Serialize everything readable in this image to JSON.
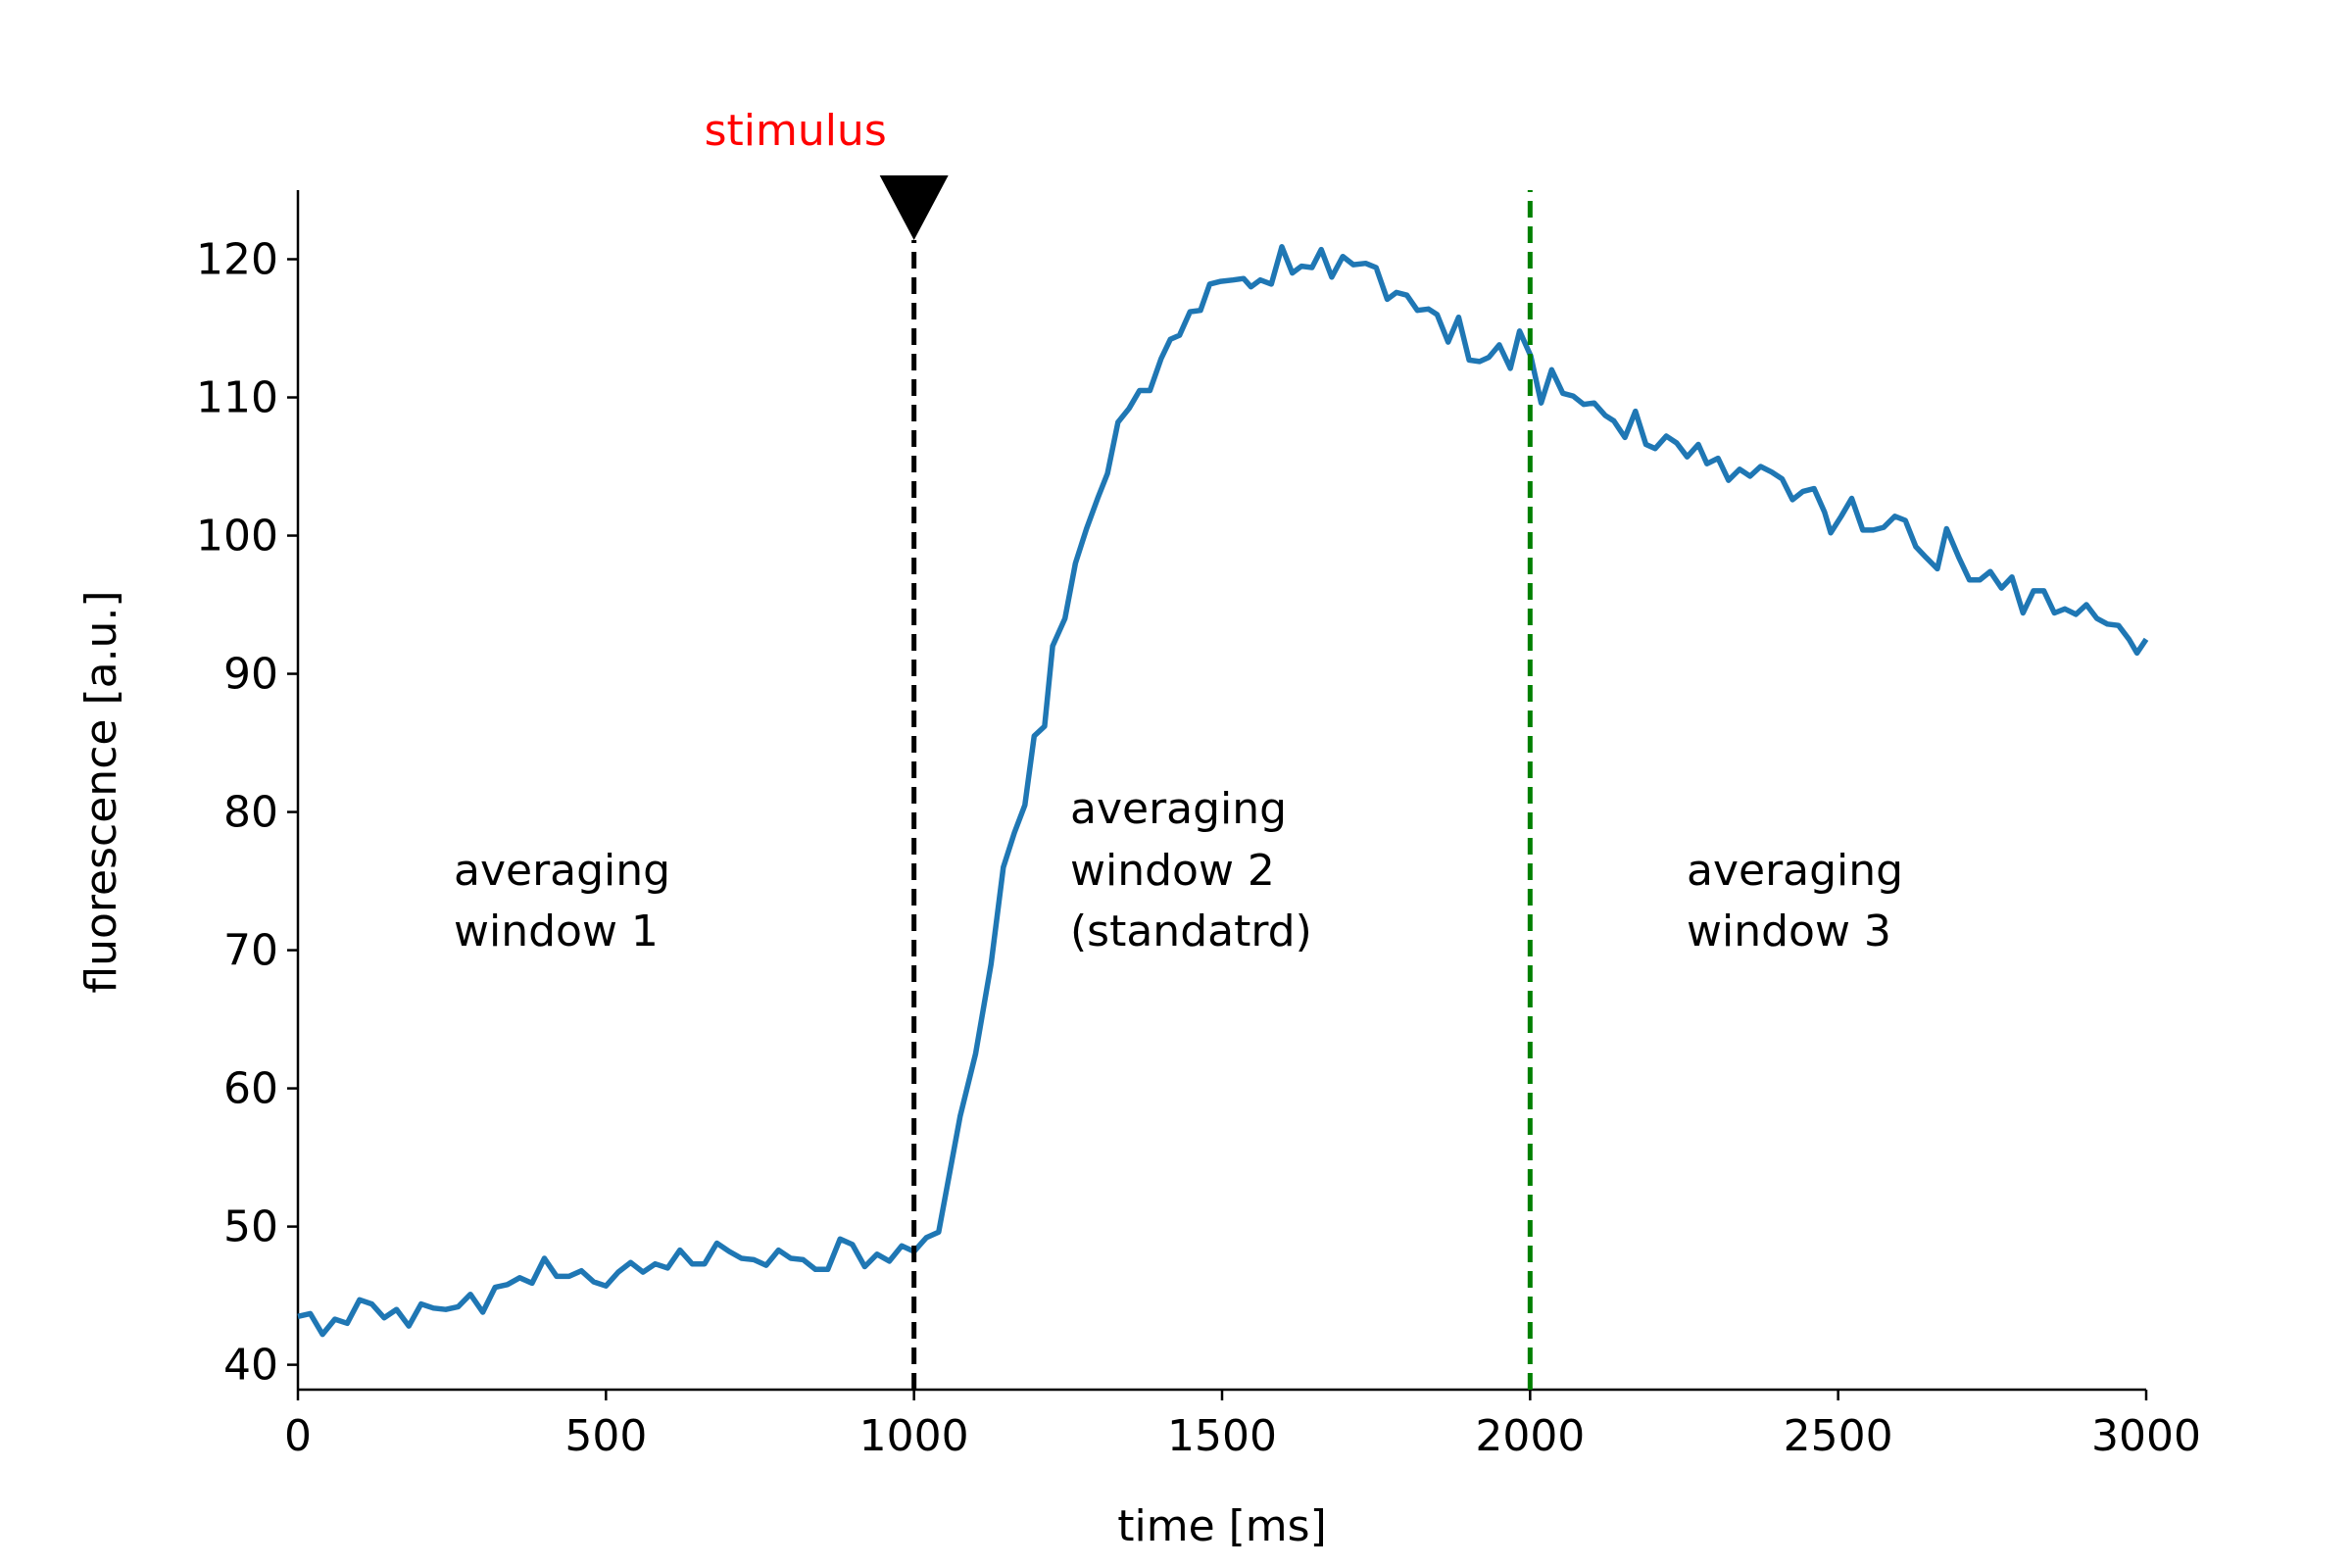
{
  "chart_data": {
    "type": "line",
    "xlabel": "time [ms]",
    "ylabel": "fluorescence [a.u.]",
    "x": [
      0,
      20,
      40,
      60,
      80,
      100,
      120,
      140,
      160,
      180,
      200,
      220,
      240,
      260,
      280,
      300,
      320,
      340,
      360,
      380,
      400,
      420,
      440,
      460,
      480,
      500,
      520,
      540,
      560,
      580,
      600,
      620,
      640,
      660,
      680,
      700,
      720,
      740,
      760,
      780,
      800,
      820,
      840,
      860,
      880,
      900,
      920,
      940,
      960,
      980,
      1000,
      1020,
      1040,
      1050,
      1075,
      1100,
      1125,
      1145,
      1163,
      1180,
      1195,
      1212,
      1225,
      1245,
      1262,
      1280,
      1299,
      1314,
      1331,
      1349,
      1366,
      1383,
      1401,
      1416,
      1431,
      1448,
      1465,
      1480,
      1498,
      1518,
      1535,
      1547,
      1562,
      1580,
      1597,
      1614,
      1629,
      1646,
      1661,
      1678,
      1696,
      1713,
      1733,
      1750,
      1768,
      1783,
      1800,
      1817,
      1835,
      1849,
      1867,
      1884,
      1901,
      1918,
      1933,
      1950,
      1968,
      1983,
      2001,
      2018,
      2035,
      2053,
      2070,
      2087,
      2104,
      2122,
      2136,
      2154,
      2171,
      2188,
      2203,
      2221,
      2238,
      2255,
      2273,
      2287,
      2305,
      2322,
      2340,
      2357,
      2374,
      2392,
      2409,
      2426,
      2443,
      2461,
      2478,
      2488,
      2505,
      2522,
      2540,
      2557,
      2574,
      2592,
      2609,
      2626,
      2643,
      2661,
      2676,
      2696,
      2713,
      2730,
      2747,
      2765,
      2782,
      2800,
      2817,
      2834,
      2851,
      2868,
      2886,
      2903,
      2920,
      2937,
      2955,
      2972,
      2985,
      3000
    ],
    "values": [
      43.5,
      43.7,
      42.2,
      43.3,
      43.0,
      44.7,
      44.4,
      43.4,
      44.0,
      42.8,
      44.4,
      44.1,
      44.0,
      44.2,
      45.1,
      43.8,
      45.6,
      45.8,
      46.3,
      45.9,
      47.7,
      46.4,
      46.4,
      46.8,
      46.0,
      45.7,
      46.7,
      47.4,
      46.7,
      47.3,
      47.0,
      48.3,
      47.3,
      47.3,
      48.8,
      48.2,
      47.7,
      47.6,
      47.2,
      48.3,
      47.7,
      47.6,
      46.9,
      46.9,
      49.1,
      48.7,
      47.1,
      48.0,
      47.5,
      48.6,
      48.2,
      49.2,
      49.6,
      52,
      58,
      62.5,
      69,
      76,
      78.5,
      80.5,
      85.5,
      86.2,
      92,
      94,
      98,
      100.5,
      102.8,
      104.5,
      108.2,
      109.2,
      110.5,
      110.5,
      112.8,
      114.2,
      114.5,
      116.2,
      116.3,
      118.2,
      118.4,
      118.5,
      118.6,
      118,
      118.5,
      118.2,
      120.9,
      119.0,
      119.5,
      119.4,
      120.7,
      118.7,
      120.2,
      119.6,
      119.7,
      119.4,
      117.1,
      117.6,
      117.4,
      116.3,
      116.4,
      116.0,
      114.0,
      115.8,
      112.7,
      112.6,
      112.9,
      113.8,
      112.1,
      114.8,
      113.0,
      109.6,
      112.0,
      110.3,
      110.1,
      109.5,
      109.6,
      108.7,
      108.3,
      107.1,
      109.0,
      106.6,
      106.3,
      107.2,
      106.7,
      105.7,
      106.6,
      105.2,
      105.6,
      104.0,
      104.8,
      104.3,
      105.0,
      104.6,
      104.1,
      102.6,
      103.2,
      103.4,
      101.7,
      100.2,
      101.4,
      102.7,
      100.4,
      100.4,
      100.6,
      101.4,
      101.1,
      99.2,
      98.4,
      97.6,
      100.5,
      98.4,
      96.8,
      96.8,
      97.4,
      96.2,
      97.0,
      94.4,
      96.0,
      96.0,
      94.4,
      94.7,
      94.3,
      95.0,
      94.0,
      93.6,
      93.5,
      92.5,
      91.5,
      92.5
    ],
    "color": "#1f77b4",
    "xlim": [
      0,
      3000
    ],
    "xticks": [
      0,
      500,
      1000,
      1500,
      2000,
      2500,
      3000
    ],
    "ylim": [
      38.2,
      125
    ],
    "yticks": [
      40,
      50,
      60,
      70,
      80,
      90,
      100,
      110,
      120
    ],
    "vlines": [
      {
        "x": 1000,
        "color": "#000000",
        "label": "stimulus",
        "label_color": "#ff0000"
      },
      {
        "x": 2000,
        "color": "#008000"
      }
    ],
    "annotations": [
      [
        "averaging",
        "window 1"
      ],
      [
        "averaging",
        "window 2",
        "(standatrd)"
      ],
      [
        "averaging",
        "window 3"
      ]
    ]
  }
}
